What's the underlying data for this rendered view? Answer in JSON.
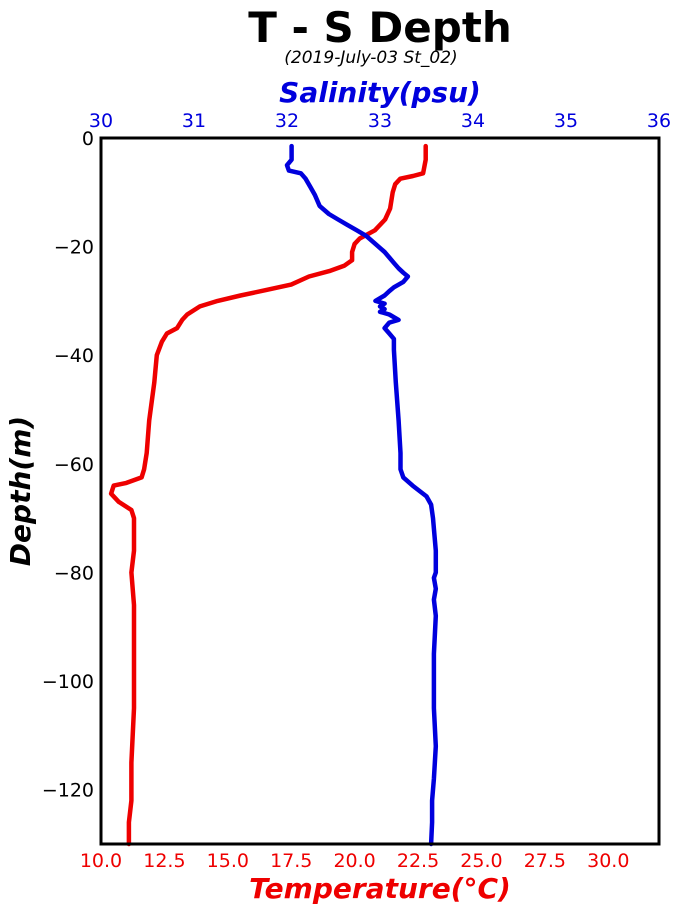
{
  "chart_data": {
    "type": "line",
    "title": "T - S Depth",
    "subtitle": "(2019-July-03 St_02)",
    "xlabel_bottom": "Temperature(°C)",
    "xlabel_top": "Salinity(psu)",
    "ylabel": "Depth(m)",
    "temperature_xlim": [
      10,
      32
    ],
    "salinity_xlim": [
      30,
      36
    ],
    "ylim": [
      -130,
      0
    ],
    "temperature_ticks": [
      "10.0",
      "12.5",
      "15.0",
      "17.5",
      "20.0",
      "22.5",
      "25.0",
      "27.5",
      "30.0"
    ],
    "salinity_ticks": [
      "30",
      "31",
      "32",
      "33",
      "34",
      "35",
      "36"
    ],
    "depth_ticks": [
      "0",
      "−20",
      "−40",
      "−60",
      "−80",
      "−100",
      "−120"
    ],
    "grid": false,
    "colors": {
      "temperature": "#ee0000",
      "salinity": "#0000dd",
      "top_axis_text": "#0000dd",
      "bottom_axis_text": "#ee0000"
    },
    "series": [
      {
        "axis": "temperature",
        "points": [
          [
            22.8,
            -1.5
          ],
          [
            22.8,
            -4
          ],
          [
            22.7,
            -6.5
          ],
          [
            22.3,
            -7
          ],
          [
            21.8,
            -7.5
          ],
          [
            21.6,
            -8.5
          ],
          [
            21.5,
            -10
          ],
          [
            21.4,
            -13
          ],
          [
            21.2,
            -15
          ],
          [
            20.8,
            -17
          ],
          [
            20.2,
            -18.5
          ],
          [
            20.0,
            -19.5
          ],
          [
            19.9,
            -21
          ],
          [
            19.9,
            -22.5
          ],
          [
            19.6,
            -23.5
          ],
          [
            19.0,
            -24.5
          ],
          [
            18.2,
            -25.5
          ],
          [
            17.5,
            -27
          ],
          [
            16.5,
            -28
          ],
          [
            15.5,
            -29
          ],
          [
            14.6,
            -30
          ],
          [
            13.9,
            -31
          ],
          [
            13.4,
            -32.5
          ],
          [
            13.2,
            -33.5
          ],
          [
            13.0,
            -35
          ],
          [
            12.6,
            -36
          ],
          [
            12.4,
            -37.5
          ],
          [
            12.2,
            -40
          ],
          [
            12.1,
            -45
          ],
          [
            11.9,
            -52
          ],
          [
            11.8,
            -58
          ],
          [
            11.7,
            -61
          ],
          [
            11.6,
            -62.5
          ],
          [
            11.0,
            -63.5
          ],
          [
            10.5,
            -64
          ],
          [
            10.4,
            -65.5
          ],
          [
            10.7,
            -67
          ],
          [
            11.2,
            -68.5
          ],
          [
            11.3,
            -70
          ],
          [
            11.3,
            -76
          ],
          [
            11.2,
            -80
          ],
          [
            11.3,
            -86
          ],
          [
            11.3,
            -95
          ],
          [
            11.3,
            -105
          ],
          [
            11.2,
            -115
          ],
          [
            11.2,
            -122
          ],
          [
            11.1,
            -126
          ],
          [
            11.1,
            -130
          ]
        ]
      },
      {
        "axis": "salinity",
        "points": [
          [
            32.05,
            -1.5
          ],
          [
            32.05,
            -4
          ],
          [
            32.0,
            -5
          ],
          [
            32.02,
            -6
          ],
          [
            32.15,
            -6.5
          ],
          [
            32.2,
            -7.5
          ],
          [
            32.25,
            -9
          ],
          [
            32.3,
            -10.5
          ],
          [
            32.35,
            -12.5
          ],
          [
            32.45,
            -14
          ],
          [
            32.55,
            -15
          ],
          [
            32.65,
            -16
          ],
          [
            32.75,
            -17
          ],
          [
            32.85,
            -18
          ],
          [
            32.95,
            -19.5
          ],
          [
            33.05,
            -21
          ],
          [
            33.1,
            -22
          ],
          [
            33.15,
            -23
          ],
          [
            33.2,
            -24
          ],
          [
            33.25,
            -24.8
          ],
          [
            33.3,
            -25.5
          ],
          [
            33.25,
            -26.5
          ],
          [
            33.15,
            -27.5
          ],
          [
            33.1,
            -28.2
          ],
          [
            33.05,
            -29
          ],
          [
            33.0,
            -29.5
          ],
          [
            32.95,
            -30
          ],
          [
            33.05,
            -30.5
          ],
          [
            33.0,
            -31
          ],
          [
            33.05,
            -31.5
          ],
          [
            33.0,
            -32
          ],
          [
            33.1,
            -32.5
          ],
          [
            33.2,
            -33.5
          ],
          [
            33.1,
            -34
          ],
          [
            33.05,
            -35
          ],
          [
            33.1,
            -36
          ],
          [
            33.15,
            -37
          ],
          [
            33.15,
            -39
          ],
          [
            33.17,
            -45
          ],
          [
            33.2,
            -52
          ],
          [
            33.22,
            -58
          ],
          [
            33.22,
            -61
          ],
          [
            33.25,
            -62.5
          ],
          [
            33.35,
            -64
          ],
          [
            33.5,
            -66
          ],
          [
            33.55,
            -67.5
          ],
          [
            33.57,
            -70
          ],
          [
            33.6,
            -76
          ],
          [
            33.6,
            -80
          ],
          [
            33.58,
            -81
          ],
          [
            33.6,
            -83
          ],
          [
            33.58,
            -85
          ],
          [
            33.6,
            -88
          ],
          [
            33.58,
            -95
          ],
          [
            33.58,
            -105
          ],
          [
            33.6,
            -112
          ],
          [
            33.58,
            -118
          ],
          [
            33.56,
            -122
          ],
          [
            33.56,
            -126
          ],
          [
            33.55,
            -130
          ]
        ]
      }
    ]
  }
}
